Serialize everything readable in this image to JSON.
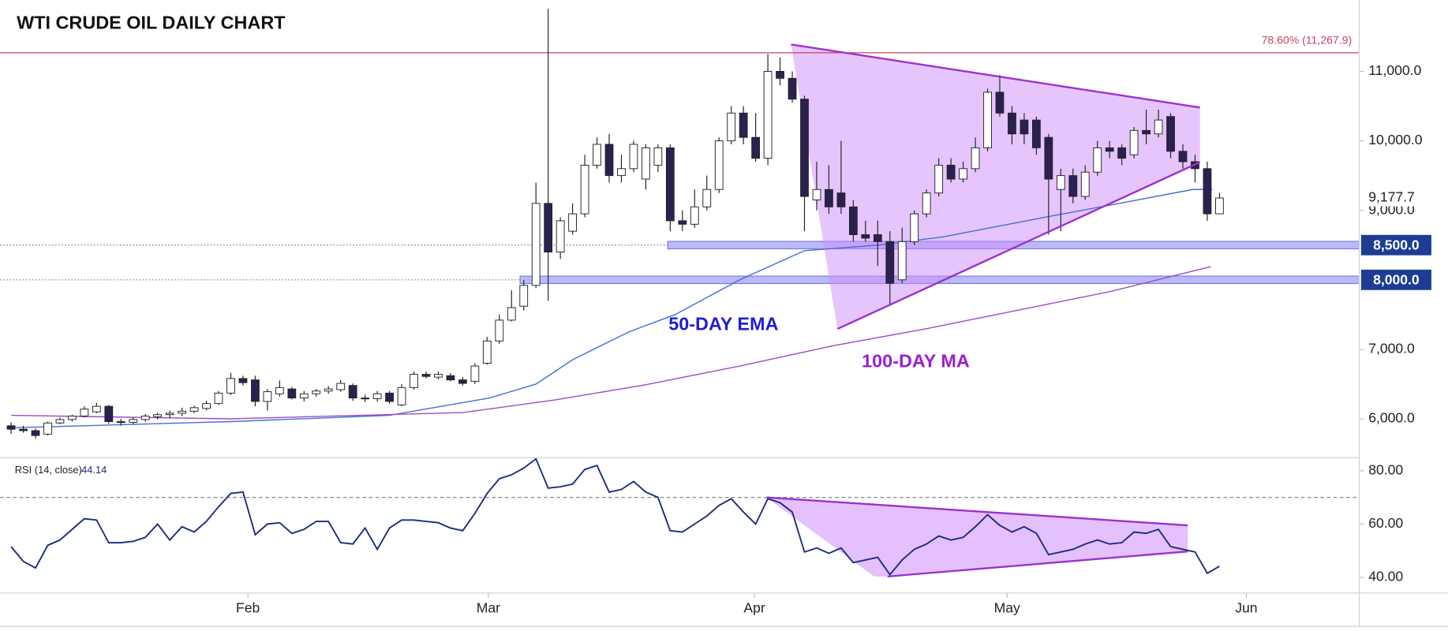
{
  "chart_data": [
    {
      "type": "candlestick",
      "title": "WTI CRUDE OIL DAILY CHART",
      "ylim": [
        5440,
        12027
      ],
      "xlim": [
        -0.91,
        110.45
      ],
      "yticks": [
        {
          "value": 6000,
          "label": "6,000.0"
        },
        {
          "value": 7000,
          "label": "7,000.0"
        },
        {
          "value": 9000,
          "label": "9,000.0"
        },
        {
          "value": 10000,
          "label": "10,000.0"
        },
        {
          "value": 11000,
          "label": "11,000.0"
        }
      ],
      "up_color": "#ffffff",
      "down_color": "#2b2150",
      "open": [
        5900,
        5850,
        5830,
        5780,
        5940,
        5990,
        6040,
        6100,
        6180,
        5960,
        5950,
        5990,
        6030,
        6060,
        6080,
        6110,
        6150,
        6220,
        6370,
        6580,
        6560,
        6250,
        6360,
        6430,
        6300,
        6360,
        6400,
        6420,
        6480,
        6300,
        6290,
        6370,
        6200,
        6450,
        6640,
        6600,
        6620,
        6560,
        6540,
        6800,
        7120,
        7420,
        7620,
        7920,
        9100,
        8400,
        8700,
        8950,
        9650,
        9950,
        9500,
        9600,
        9450,
        9650,
        9900,
        8850,
        8800,
        9050,
        9300,
        10000,
        10400,
        10050,
        9750,
        11000,
        10900,
        10600,
        9150,
        9300,
        9250,
        9050,
        8650,
        8650,
        8550,
        8000,
        8550,
        8950,
        9250,
        9650,
        9450,
        9600,
        9900,
        10700,
        10400,
        10300,
        10300,
        10050,
        9300,
        9500,
        9200,
        9550,
        9900,
        9900,
        9800,
        10150,
        10100,
        10350,
        9850,
        9700,
        9600,
        8950
      ],
      "high": [
        5950,
        5900,
        5860,
        5960,
        6020,
        6060,
        6180,
        6230,
        6200,
        6000,
        6020,
        6070,
        6090,
        6120,
        6160,
        6190,
        6260,
        6400,
        6660,
        6620,
        6620,
        6430,
        6550,
        6460,
        6400,
        6430,
        6470,
        6560,
        6510,
        6350,
        6400,
        6400,
        6500,
        6680,
        6680,
        6680,
        6660,
        6600,
        6800,
        7180,
        7500,
        7850,
        8000,
        9400,
        11900,
        8900,
        9100,
        9800,
        10050,
        10100,
        9800,
        10000,
        9950,
        9950,
        9950,
        9000,
        9300,
        9500,
        10050,
        10500,
        10500,
        10400,
        11250,
        11200,
        11000,
        10650,
        9700,
        9650,
        10000,
        9150,
        8850,
        8850,
        8700,
        8750,
        9000,
        9300,
        9750,
        9750,
        9700,
        10050,
        10750,
        10950,
        10500,
        10400,
        10350,
        10100,
        9600,
        9600,
        9650,
        10000,
        10000,
        9950,
        10200,
        10450,
        10450,
        10400,
        9950,
        9800,
        9700,
        9250
      ],
      "low": [
        5780,
        5800,
        5720,
        5760,
        5920,
        5960,
        6020,
        6080,
        5930,
        5900,
        5920,
        5960,
        5990,
        6010,
        6040,
        6080,
        6120,
        6200,
        6340,
        6480,
        6180,
        6120,
        6320,
        6280,
        6250,
        6320,
        6360,
        6390,
        6260,
        6240,
        6250,
        6220,
        6180,
        6420,
        6580,
        6570,
        6540,
        6480,
        6500,
        6780,
        7080,
        7400,
        7560,
        7880,
        7700,
        8300,
        8650,
        8900,
        9600,
        9400,
        9400,
        9550,
        9300,
        9550,
        8700,
        8700,
        8750,
        9000,
        9250,
        9950,
        9950,
        9700,
        9650,
        10800,
        10550,
        8700,
        9000,
        8950,
        8950,
        8550,
        8550,
        8200,
        7650,
        7950,
        8500,
        8900,
        9200,
        9400,
        9400,
        9550,
        9850,
        10350,
        9950,
        9950,
        9800,
        8650,
        8700,
        9100,
        9150,
        9500,
        9750,
        9650,
        9750,
        9950,
        10050,
        9750,
        9600,
        9400,
        8850,
        8950
      ],
      "close": [
        5850,
        5830,
        5760,
        5940,
        5990,
        6040,
        6140,
        6180,
        5960,
        5950,
        5990,
        6040,
        6060,
        6080,
        6110,
        6160,
        6220,
        6370,
        6580,
        6520,
        6250,
        6390,
        6450,
        6300,
        6360,
        6400,
        6430,
        6510,
        6300,
        6290,
        6360,
        6250,
        6450,
        6640,
        6610,
        6640,
        6560,
        6510,
        6760,
        7120,
        7420,
        7600,
        7920,
        9100,
        8400,
        8850,
        8950,
        9650,
        9950,
        9500,
        9600,
        9950,
        9900,
        9900,
        8850,
        8800,
        9050,
        9300,
        10000,
        10400,
        10050,
        9750,
        11000,
        10900,
        10600,
        9200,
        9300,
        9050,
        9050,
        8650,
        8600,
        8550,
        7950,
        8550,
        8950,
        9250,
        9650,
        9450,
        9600,
        9900,
        10700,
        10400,
        10100,
        10100,
        9900,
        9450,
        9500,
        9200,
        9550,
        9900,
        9850,
        9750,
        10150,
        10100,
        10300,
        9850,
        9700,
        9600,
        8950,
        9177.7
      ],
      "series": [
        {
          "name": "50-DAY EMA",
          "color": "#3f6fd6",
          "label_color": "#1e1ecf",
          "x": [
            0,
            18,
            31,
            39.2,
            43,
            46,
            50.6,
            54.4,
            59.7,
            65,
            71.1,
            76.4,
            84.7,
            92.3,
            96.8,
            98.4
          ],
          "values": [
            5870,
            5960,
            6050,
            6300,
            6500,
            6850,
            7250,
            7500,
            8000,
            8420,
            8500,
            8620,
            8900,
            9150,
            9300,
            9300
          ]
        },
        {
          "name": "100-DAY MA",
          "color": "#a24bc4",
          "label_color": "#9b1fd0",
          "x": [
            0,
            18,
            37,
            44.5,
            52,
            59.7,
            67.3,
            74.8,
            82.4,
            90,
            98.3
          ],
          "values": [
            6050,
            6000,
            6090,
            6270,
            6490,
            6760,
            7050,
            7290,
            7560,
            7830,
            8190
          ]
        }
      ],
      "levels": [
        {
          "value": 11267.9,
          "label": "78.60% (11,267.9)",
          "color": "#c9405e"
        }
      ],
      "zones": [
        {
          "value": 8500,
          "label": "8,500.0",
          "start": 53.8
        },
        {
          "value": 8000,
          "label": "8,000.0",
          "start": 41.7
        }
      ],
      "zone_color": "#1c3d93",
      "last_price": {
        "value": 9177.7,
        "label": "9,177.7"
      },
      "pattern": {
        "color": "#9b30d0",
        "points": [
          [
            63.9,
            11387
          ],
          [
            97.4,
            10480
          ],
          [
            97.4,
            9693
          ],
          [
            67.7,
            7293
          ]
        ]
      }
    },
    {
      "type": "line",
      "title": "RSI (14, close)",
      "color": "#1a2a80",
      "ylim": [
        34.1,
        84.9
      ],
      "xlim": [
        -0.91,
        110.45
      ],
      "yticks": [
        {
          "value": 40,
          "label": "40.00"
        },
        {
          "value": 60,
          "label": "60.00"
        },
        {
          "value": 80,
          "label": "80.00"
        }
      ],
      "overbought": 70,
      "xticks": [
        {
          "value": 19.4,
          "label": "Feb"
        },
        {
          "value": 39.1,
          "label": "Mar"
        },
        {
          "value": 60.9,
          "label": "Apr"
        },
        {
          "value": 81.6,
          "label": "May"
        },
        {
          "value": 101.2,
          "label": "Jun"
        }
      ],
      "values": [
        51.5,
        46,
        43.5,
        52,
        54,
        58,
        62,
        61.5,
        53,
        53,
        53.5,
        55,
        60,
        54,
        59,
        57,
        61,
        66.5,
        71.5,
        72,
        56,
        60,
        60.5,
        56.5,
        58,
        61,
        61,
        53,
        52.5,
        58.5,
        50.5,
        58.5,
        61.5,
        61.5,
        61,
        60.5,
        58.5,
        57.5,
        64,
        71.5,
        77,
        78.5,
        81,
        84.5,
        73.5,
        74,
        75,
        80.5,
        82,
        72,
        73,
        76,
        72,
        70,
        57.5,
        57,
        60,
        63,
        67,
        69.5,
        64.5,
        60,
        69.5,
        68,
        64.5,
        49.5,
        51,
        49,
        51,
        45.5,
        46.5,
        47.5,
        41,
        46.5,
        50.5,
        52.5,
        55.5,
        54,
        55,
        59,
        63.5,
        59.5,
        57,
        59,
        56.5,
        48.5,
        49.5,
        50.5,
        52.5,
        54,
        52.5,
        53,
        57,
        56.5,
        58,
        51.5,
        50.5,
        49.5,
        41.5,
        44.14
      ],
      "pattern": {
        "color": "#9b30d0",
        "points": [
          [
            61.9,
            70
          ],
          [
            96.4,
            59.5
          ],
          [
            96.4,
            49.7
          ],
          [
            71.8,
            40.3
          ],
          [
            70.7,
            40.3
          ]
        ]
      }
    }
  ]
}
